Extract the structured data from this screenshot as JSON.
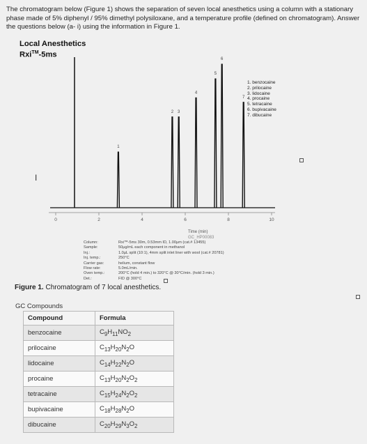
{
  "intro_text": "The chromatogram below (Figure 1) shows the separation of seven local anesthetics using a column with a stationary phase made of 5% diphenyl / 95% dimethyl polysiloxane, and a temperature profile (defined on chromatogram). Answer the questions below (a- i) using the information in Figure 1.",
  "chart": {
    "title": "Local Anesthetics",
    "subtitle_main": "Rxi",
    "subtitle_tm": "TM",
    "subtitle_rest": "-5ms"
  },
  "chart_data": {
    "type": "line",
    "title": "Local Anesthetics",
    "xlabel": "Time (min)",
    "xlim": [
      0,
      10
    ],
    "x_ticks": [
      "0",
      "2",
      "4",
      "6",
      "8",
      "10"
    ],
    "peaks": [
      {
        "label": "1",
        "time": 2.9,
        "relative_height": 0.38
      },
      {
        "label": "2",
        "time": 5.4,
        "relative_height": 0.62
      },
      {
        "label": "3",
        "time": 5.7,
        "relative_height": 0.62
      },
      {
        "label": "4",
        "time": 6.5,
        "relative_height": 0.75
      },
      {
        "label": "5",
        "time": 7.4,
        "relative_height": 0.88
      },
      {
        "label": "6",
        "time": 7.7,
        "relative_height": 0.98
      },
      {
        "label": "7",
        "time": 8.7,
        "relative_height": 0.72
      }
    ],
    "legend": [
      "1. benzocaine",
      "2. prilocaine",
      "3. lidocaine",
      "4. procaine",
      "5. tetracaine",
      "6. bupivacaine",
      "7. dibucaine"
    ],
    "legend_position": "top-right"
  },
  "axis_extra": {
    "xtitle": "Time (min)",
    "xsub": "GC_HP00083"
  },
  "conditions": [
    {
      "key": "Column:",
      "value": "Rxi™-5ms 30m, 0.53mm ID, 1.00µm (cat.# 13455)"
    },
    {
      "key": "Sample:",
      "value": "50µg/mL each component in methanol"
    },
    {
      "key": "Inj.:",
      "value": "1.0µL split (10:1), 4mm split inlet liner with wool (cat.# 20781)"
    },
    {
      "key": "Inj. temp.:",
      "value": "250°C"
    },
    {
      "key": "Carrier gas:",
      "value": "helium, constant flow"
    },
    {
      "key": "Flow rate:",
      "value": "5.0mL/min."
    },
    {
      "key": "Oven temp.:",
      "value": "200°C (hold 4 min.) to 320°C @ 30°C/min. (hold 3 min.)"
    },
    {
      "key": "Det.:",
      "value": "FID @ 300°C"
    }
  ],
  "figure_caption": {
    "bold": "Figure 1.",
    "text": " Chromatogram of 7 local anesthetics."
  },
  "gc_label": "GC Compounds",
  "table": {
    "headers": [
      "Compound",
      "Formula"
    ],
    "rows": [
      {
        "name": "benzocaine",
        "formula_html": "C<sub>9</sub>H<sub>11</sub>NO<sub>2</sub>"
      },
      {
        "name": "prilocaine",
        "formula_html": "C<sub>13</sub>H<sub>20</sub>N<sub>2</sub>O"
      },
      {
        "name": "lidocaine",
        "formula_html": "C<sub>14</sub>H<sub>22</sub>N<sub>2</sub>O"
      },
      {
        "name": "procaine",
        "formula_html": "C<sub>13</sub>H<sub>20</sub>N<sub>2</sub>O<sub>2</sub>"
      },
      {
        "name": "tetracaine",
        "formula_html": "C<sub>15</sub>H<sub>24</sub>N<sub>2</sub>O<sub>2</sub>"
      },
      {
        "name": "bupivacaine",
        "formula_html": "C<sub>18</sub>H<sub>28</sub>N<sub>2</sub>O"
      },
      {
        "name": "dibucaine",
        "formula_html": "C<sub>20</sub>H<sub>29</sub>N<sub>3</sub>O<sub>2</sub>"
      }
    ]
  }
}
